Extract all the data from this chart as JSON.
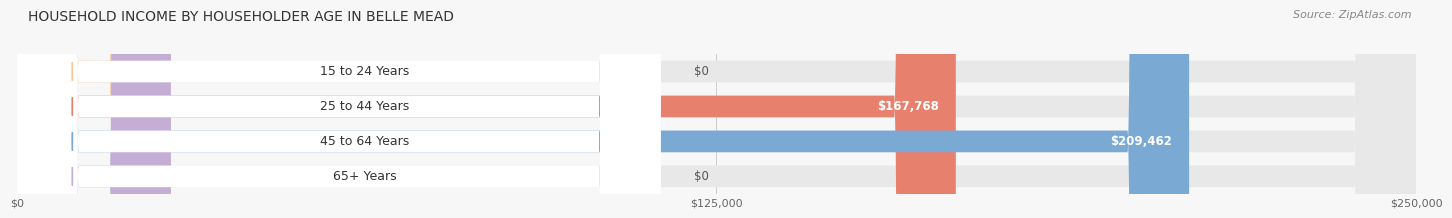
{
  "title": "HOUSEHOLD INCOME BY HOUSEHOLDER AGE IN BELLE MEAD",
  "source": "Source: ZipAtlas.com",
  "categories": [
    "15 to 24 Years",
    "25 to 44 Years",
    "45 to 64 Years",
    "65+ Years"
  ],
  "values": [
    0,
    167768,
    209462,
    0
  ],
  "value_labels": [
    "$0",
    "$167,768",
    "$209,462",
    "$0"
  ],
  "bar_colors": [
    "#f5c89a",
    "#e8806e",
    "#7aaad4",
    "#c5aed6"
  ],
  "x_max": 250000,
  "x_ticks": [
    0,
    125000,
    250000
  ],
  "x_tick_labels": [
    "$0",
    "$125,000",
    "$250,000"
  ],
  "background_color": "#f7f7f7",
  "bar_bg_color": "#e8e8e8",
  "title_fontsize": 10,
  "source_fontsize": 8,
  "label_fontsize": 9,
  "value_fontsize": 8.5,
  "tick_fontsize": 8
}
